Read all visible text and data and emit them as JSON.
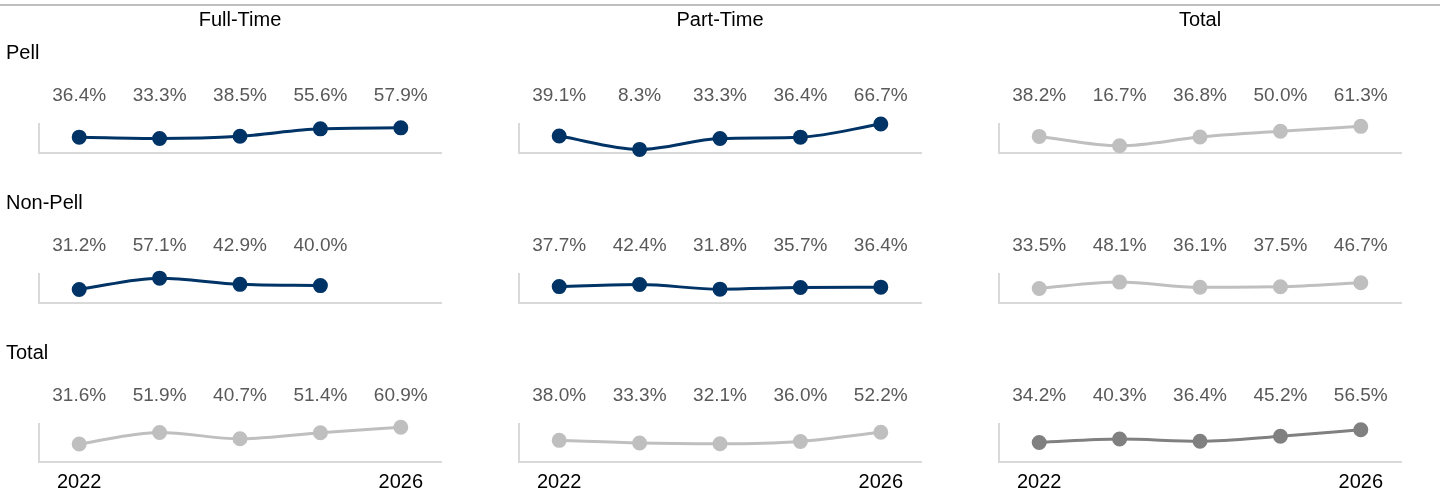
{
  "chart_data": [
    {
      "type": "line",
      "title": "Full-Time",
      "subtitle": "Pell",
      "categories": [
        "2022",
        null,
        null,
        null,
        "2026"
      ],
      "tick_labels": false,
      "marker": "circle",
      "series": [
        {
          "color": "#003366",
          "values": [
            36.4,
            33.3,
            38.5,
            55.6,
            57.9
          ],
          "value_labels": [
            "36.4%",
            "33.3%",
            "38.5%",
            "55.6%",
            "57.9%"
          ]
        }
      ]
    },
    {
      "type": "line",
      "title": "Part-Time",
      "categories": [
        "2022",
        null,
        null,
        null,
        "2026"
      ],
      "tick_labels": false,
      "marker": "circle",
      "series": [
        {
          "color": "#003366",
          "values": [
            39.1,
            8.3,
            33.3,
            36.4,
            66.7
          ],
          "value_labels": [
            "39.1%",
            "8.3%",
            "33.3%",
            "36.4%",
            "66.7%"
          ]
        }
      ]
    },
    {
      "type": "line",
      "title": "Total",
      "categories": [
        "2022",
        null,
        null,
        null,
        "2026"
      ],
      "tick_labels": false,
      "marker": "circle",
      "series": [
        {
          "color": "#bfbfbf",
          "values": [
            38.2,
            16.7,
            36.8,
            50.0,
            61.3
          ],
          "value_labels": [
            "38.2%",
            "16.7%",
            "36.8%",
            "50.0%",
            "61.3%"
          ]
        }
      ]
    },
    {
      "type": "line",
      "subtitle": "Non-Pell",
      "categories": [
        "2022",
        null,
        null,
        null,
        "2026"
      ],
      "tick_labels": false,
      "marker": "circle",
      "series": [
        {
          "color": "#003366",
          "values": [
            31.2,
            57.1,
            42.9,
            40.0,
            null
          ],
          "value_labels": [
            "31.2%",
            "57.1%",
            "42.9%",
            "40.0%",
            null
          ]
        }
      ]
    },
    {
      "type": "line",
      "categories": [
        "2022",
        null,
        null,
        null,
        "2026"
      ],
      "tick_labels": false,
      "marker": "circle",
      "series": [
        {
          "color": "#003366",
          "values": [
            37.7,
            42.4,
            31.8,
            35.7,
            36.4
          ],
          "value_labels": [
            "37.7%",
            "42.4%",
            "31.8%",
            "35.7%",
            "36.4%"
          ]
        }
      ]
    },
    {
      "type": "line",
      "categories": [
        "2022",
        null,
        null,
        null,
        "2026"
      ],
      "tick_labels": false,
      "marker": "circle",
      "series": [
        {
          "color": "#bfbfbf",
          "values": [
            33.5,
            48.1,
            36.1,
            37.5,
            46.7
          ],
          "value_labels": [
            "33.5%",
            "48.1%",
            "36.1%",
            "37.5%",
            "46.7%"
          ]
        }
      ]
    },
    {
      "type": "line",
      "subtitle": "Total",
      "categories": [
        "2022",
        null,
        null,
        null,
        "2026"
      ],
      "tick_labels": "x",
      "marker": "circle",
      "series": [
        {
          "color": "#bfbfbf",
          "values": [
            31.6,
            51.9,
            40.7,
            51.4,
            60.9
          ],
          "value_labels": [
            "31.6%",
            "51.9%",
            "40.7%",
            "51.4%",
            "60.9%"
          ]
        }
      ]
    },
    {
      "type": "line",
      "categories": [
        "2022",
        null,
        null,
        null,
        "2026"
      ],
      "tick_labels": "x",
      "marker": "circle",
      "series": [
        {
          "color": "#bfbfbf",
          "values": [
            38.0,
            33.3,
            32.1,
            36.0,
            52.2
          ],
          "value_labels": [
            "38.0%",
            "33.3%",
            "32.1%",
            "36.0%",
            "52.2%"
          ]
        }
      ]
    },
    {
      "type": "line",
      "categories": [
        "2022",
        null,
        null,
        null,
        "2026"
      ],
      "tick_labels": "x",
      "marker": "circle",
      "series": [
        {
          "color": "#808080",
          "values": [
            34.2,
            40.3,
            36.4,
            45.2,
            56.5
          ],
          "value_labels": [
            "34.2%",
            "40.3%",
            "36.4%",
            "45.2%",
            "56.5%"
          ]
        }
      ]
    }
  ]
}
